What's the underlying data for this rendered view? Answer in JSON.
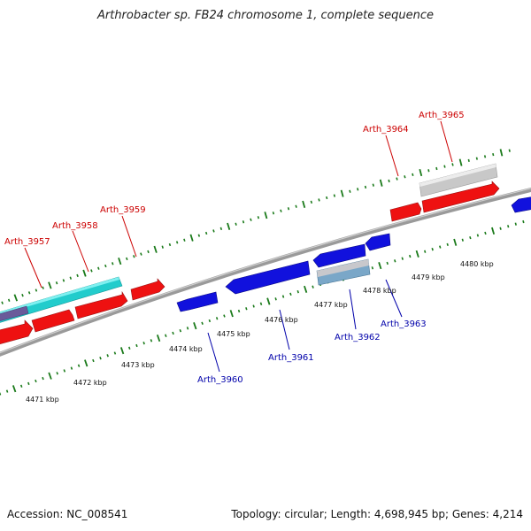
{
  "title": "Arthrobacter sp. FB24 chromosome 1, complete sequence",
  "footer": {
    "accession": "Accession: NC_008541",
    "summary": "Topology: circular; Length: 4,698,945 bp; Genes: 4,214"
  },
  "colors": {
    "forward_gene": "#ee1111",
    "reverse_gene": "#1111dd",
    "forward_label": "#cc0000",
    "reverse_label": "#0000aa",
    "tick": "#1a7a1a",
    "backbone": "#808080",
    "cyan_feature": "#22cccc",
    "grey_feature": "#c8c8c8"
  },
  "scale": {
    "unit": "kbp",
    "ticks": [
      {
        "label": "4471 kbp",
        "kb": 4471
      },
      {
        "label": "4472 kbp",
        "kb": 4472
      },
      {
        "label": "4473 kbp",
        "kb": 4473
      },
      {
        "label": "4474 kbp",
        "kb": 4474
      },
      {
        "label": "4475 kbp",
        "kb": 4475
      },
      {
        "label": "4476 kbp",
        "kb": 4476
      },
      {
        "label": "4477 kbp",
        "kb": 4477
      },
      {
        "label": "4478 kbp",
        "kb": 4478
      },
      {
        "label": "4479 kbp",
        "kb": 4479
      },
      {
        "label": "4480 kbp",
        "kb": 4480
      }
    ]
  },
  "genes": {
    "forward": [
      {
        "name": "Arth_3957"
      },
      {
        "name": "Arth_3958"
      },
      {
        "name": "Arth_3959"
      },
      {
        "name": "Arth_3964"
      },
      {
        "name": "Arth_3965"
      }
    ],
    "reverse": [
      {
        "name": "Arth_3960"
      },
      {
        "name": "Arth_3961"
      },
      {
        "name": "Arth_3962"
      },
      {
        "name": "Arth_3963"
      }
    ]
  }
}
